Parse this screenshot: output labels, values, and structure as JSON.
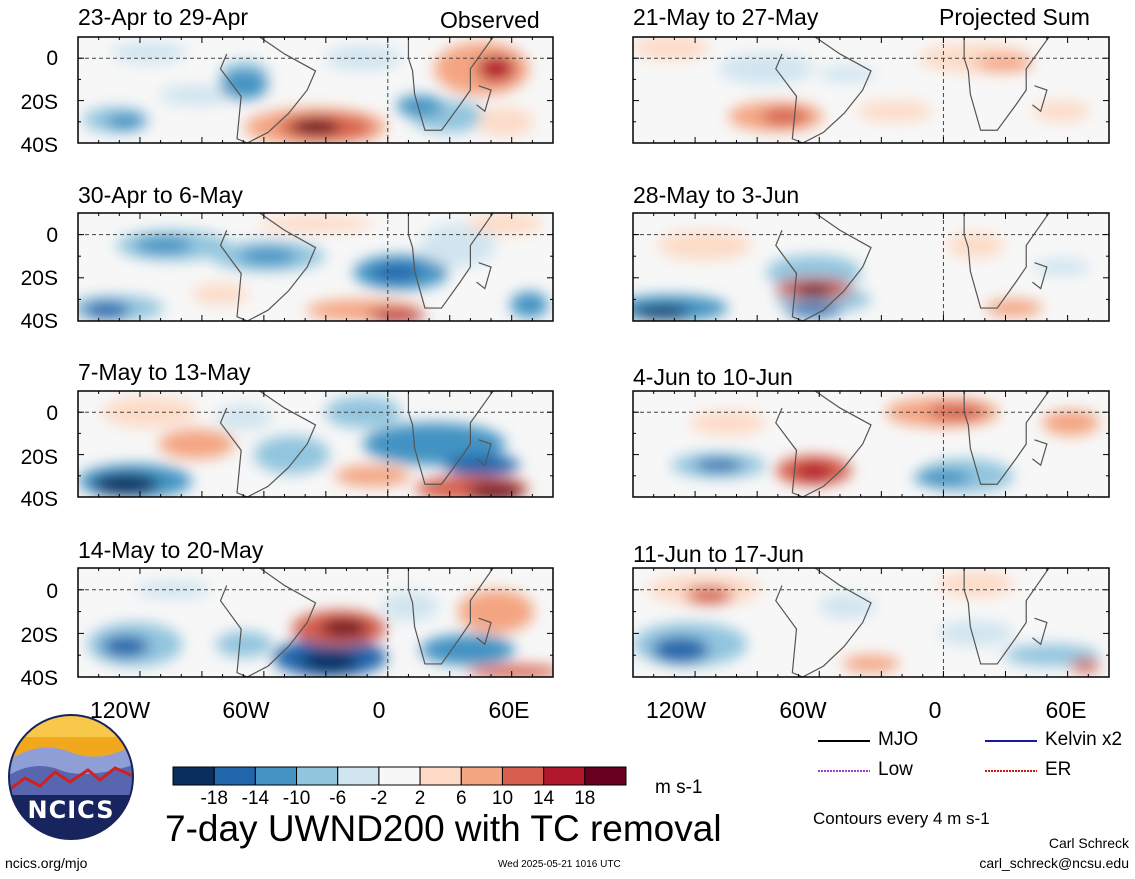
{
  "figure": {
    "title": "7-day UWND200 with TC removal",
    "units": "m s-1",
    "contour_note": "Contours every 4 m s-1",
    "author": "Carl Schreck",
    "email": "carl_schreck@ncsu.edu",
    "site": "ncics.org/mjo",
    "timestamp": "Wed 2025-05-21 1016 UTC",
    "logo_text": "NCICS"
  },
  "columns": {
    "left_tag": "Observed",
    "right_tag": "Projected Sum"
  },
  "axes": {
    "y_ticks": [
      "0",
      "20S",
      "40S"
    ],
    "x_ticks": [
      "120W",
      "60W",
      "0",
      "60E"
    ]
  },
  "panels": [
    {
      "title": "23-Apr to 29-Apr",
      "column": "left",
      "row": 0
    },
    {
      "title": "30-Apr to 6-May",
      "column": "left",
      "row": 1
    },
    {
      "title": "7-May to 13-May",
      "column": "left",
      "row": 2
    },
    {
      "title": "14-May to 20-May",
      "column": "left",
      "row": 3
    },
    {
      "title": "21-May to 27-May",
      "column": "right",
      "row": 0
    },
    {
      "title": "28-May to 3-Jun",
      "column": "right",
      "row": 1
    },
    {
      "title": "4-Jun to 10-Jun",
      "column": "right",
      "row": 2
    },
    {
      "title": "11-Jun to 17-Jun",
      "column": "right",
      "row": 3
    }
  ],
  "colorbar": {
    "labels": [
      "-18",
      "-14",
      "-10",
      "-6",
      "-2",
      "2",
      "6",
      "10",
      "14",
      "18"
    ],
    "colors": [
      "#0a2f5e",
      "#2166ac",
      "#4393c3",
      "#92c5de",
      "#d1e5f0",
      "#f7f7f7",
      "#fddbc7",
      "#f4a582",
      "#d6604d",
      "#b2182b",
      "#67001f"
    ]
  },
  "legend": [
    {
      "label": "MJO",
      "color": "#000000",
      "style": "solid"
    },
    {
      "label": "Kelvin x2",
      "color": "#1a1aa0",
      "style": "solid"
    },
    {
      "label": "Low",
      "color": "#a040d0",
      "style": "dotted"
    },
    {
      "label": "ER",
      "color": "#cc1a1a",
      "style": "dotted"
    }
  ]
}
